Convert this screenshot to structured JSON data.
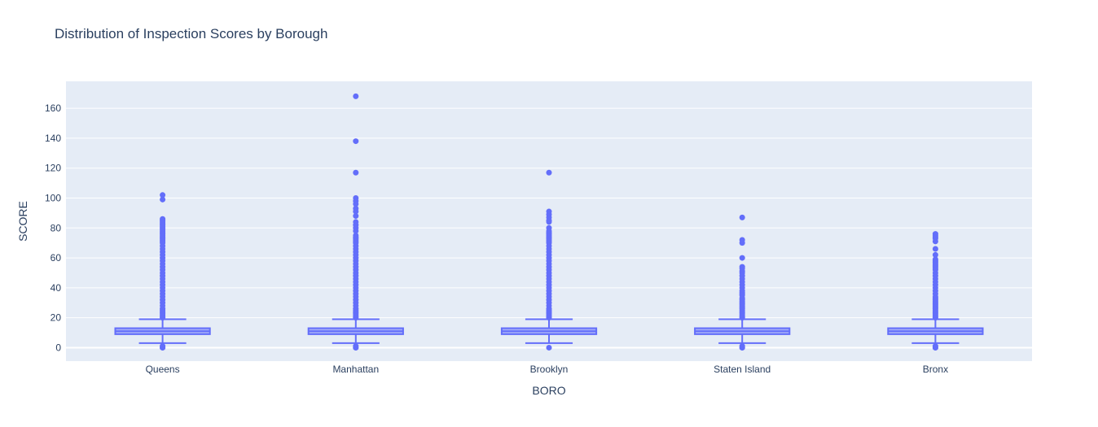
{
  "chart_data": {
    "type": "box",
    "title": "Distribution of Inspection Scores by Borough",
    "xlabel": "BORO",
    "ylabel": "SCORE",
    "ylim": [
      -9,
      178
    ],
    "yticks": [
      0,
      20,
      40,
      60,
      80,
      100,
      120,
      140,
      160
    ],
    "grid": true,
    "colors": {
      "box": "#636efa",
      "plot_bg": "#e5ecf6",
      "grid": "#ffffff"
    },
    "categories": [
      "Queens",
      "Manhattan",
      "Brooklyn",
      "Staten Island",
      "Bronx"
    ],
    "boxes": [
      {
        "name": "Queens",
        "min": 3,
        "q1": 9,
        "median": 11,
        "q3": 13,
        "max": 19,
        "outliers": [
          0,
          0,
          1,
          102,
          99,
          86,
          85,
          84,
          83,
          82,
          81,
          80,
          79,
          78,
          77,
          76,
          75,
          74,
          73,
          72,
          71,
          70,
          68,
          66,
          64,
          62,
          60,
          58,
          56,
          54,
          52,
          50,
          48,
          46,
          44,
          42,
          40,
          38,
          36,
          34,
          32,
          30,
          28,
          26,
          25,
          24,
          23,
          22,
          21,
          20
        ]
      },
      {
        "name": "Manhattan",
        "min": 3,
        "q1": 9,
        "median": 11,
        "q3": 13,
        "max": 19,
        "outliers": [
          0,
          0,
          1,
          168,
          138,
          117,
          100,
          98,
          96,
          93,
          91,
          88,
          84,
          82,
          80,
          78,
          75,
          74,
          73,
          72,
          71,
          70,
          68,
          66,
          64,
          62,
          60,
          58,
          56,
          54,
          52,
          50,
          48,
          46,
          44,
          42,
          40,
          38,
          36,
          34,
          32,
          30,
          28,
          26,
          25,
          24,
          23,
          22,
          21,
          20
        ]
      },
      {
        "name": "Brooklyn",
        "min": 3,
        "q1": 9,
        "median": 11,
        "q3": 13,
        "max": 19,
        "outliers": [
          0,
          117,
          91,
          89,
          87,
          85,
          84,
          80,
          78,
          77,
          76,
          75,
          74,
          73,
          72,
          71,
          70,
          68,
          66,
          64,
          62,
          60,
          58,
          56,
          54,
          52,
          50,
          48,
          46,
          44,
          42,
          40,
          38,
          36,
          34,
          32,
          30,
          28,
          26,
          25,
          24,
          23,
          22,
          21,
          20
        ]
      },
      {
        "name": "Staten Island",
        "min": 3,
        "q1": 9,
        "median": 11,
        "q3": 13,
        "max": 19,
        "outliers": [
          0,
          0,
          1,
          87,
          72,
          70,
          60,
          54,
          53,
          51,
          50,
          48,
          46,
          44,
          42,
          40,
          38,
          37,
          36,
          35,
          33,
          32,
          31,
          30,
          29,
          28,
          27,
          26,
          25,
          24,
          23,
          22,
          21,
          20
        ]
      },
      {
        "name": "Bronx",
        "min": 3,
        "q1": 9,
        "median": 11,
        "q3": 13,
        "max": 19,
        "outliers": [
          0,
          0,
          1,
          76,
          75,
          74,
          73,
          71,
          66,
          62,
          59,
          58,
          57,
          56,
          55,
          54,
          53,
          52,
          50,
          48,
          46,
          44,
          42,
          40,
          38,
          36,
          34,
          33,
          32,
          31,
          30,
          29,
          28,
          27,
          26,
          25,
          24,
          23,
          22,
          21,
          20
        ]
      }
    ]
  }
}
